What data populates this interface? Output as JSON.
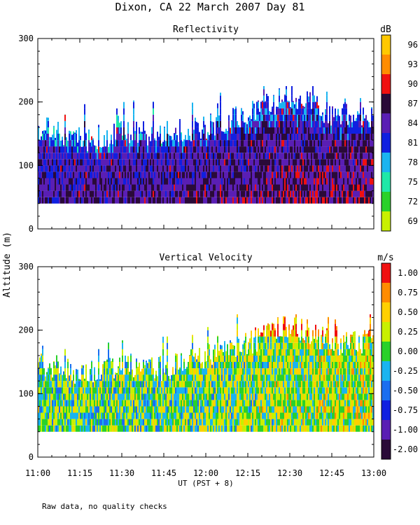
{
  "title": "Dixon, CA 22 March 2007  Day  81",
  "ylabel": "Altitude (m)",
  "xlabel": "UT  (PST + 8)",
  "footnote": "Raw data, no quality checks",
  "x_ticks": [
    "11:00",
    "11:15",
    "11:30",
    "11:45",
    "12:00",
    "12:15",
    "12:30",
    "12:45",
    "13:00"
  ],
  "colors": {
    "reflectivity": [
      "#c8f000",
      "#2ad12a",
      "#1fe8a8",
      "#1ab4f0",
      "#1020e0",
      "#5a1eb4",
      "#2a0a38",
      "#f01010",
      "#ff8c00",
      "#ffc800"
    ],
    "velocity": [
      "#2a0a38",
      "#5a1eb4",
      "#1020e0",
      "#1a6ef0",
      "#1ab4f0",
      "#2ad12a",
      "#c8f000",
      "#ffd000",
      "#ff8c00",
      "#f01010"
    ]
  },
  "chart_data": [
    {
      "type": "heatmap",
      "title": "Reflectivity",
      "units": "dB",
      "xlabel": "UT  (PST + 8)",
      "ylabel": "Altitude (m)",
      "x_range": [
        "11:00",
        "13:00"
      ],
      "ylim": [
        0,
        300
      ],
      "y_ticks": [
        "0",
        "100",
        "200",
        "300"
      ],
      "colorbar_labels": [
        "69",
        "72",
        "75",
        "78",
        "81",
        "84",
        "87",
        "90",
        "93",
        "96"
      ],
      "data_region": {
        "altitude_min": 40,
        "cloud_top_profile": [
          {
            "time": "11:00",
            "top": 160
          },
          {
            "time": "11:15",
            "top": 140
          },
          {
            "time": "11:30",
            "top": 150
          },
          {
            "time": "11:45",
            "top": 150
          },
          {
            "time": "12:00",
            "top": 160
          },
          {
            "time": "12:15",
            "top": 180
          },
          {
            "time": "12:30",
            "top": 210
          },
          {
            "time": "12:45",
            "top": 180
          },
          {
            "time": "13:00",
            "top": 180
          }
        ]
      }
    },
    {
      "type": "heatmap",
      "title": "Vertical Velocity",
      "units": "m/s",
      "xlabel": "UT  (PST + 8)",
      "ylabel": "Altitude (m)",
      "x_range": [
        "11:00",
        "13:00"
      ],
      "ylim": [
        0,
        300
      ],
      "y_ticks": [
        "0",
        "100",
        "200",
        "300"
      ],
      "colorbar_labels": [
        "-2.00",
        "-1.00",
        "-0.75",
        "-0.50",
        "-0.25",
        "0.00",
        "0.25",
        "0.50",
        "0.75",
        "1.00"
      ],
      "data_region": {
        "altitude_min": 40,
        "cloud_top_profile": [
          {
            "time": "11:00",
            "top": 150
          },
          {
            "time": "11:15",
            "top": 130
          },
          {
            "time": "11:30",
            "top": 140
          },
          {
            "time": "11:45",
            "top": 140
          },
          {
            "time": "12:00",
            "top": 160
          },
          {
            "time": "12:15",
            "top": 180
          },
          {
            "time": "12:30",
            "top": 210
          },
          {
            "time": "12:45",
            "top": 180
          },
          {
            "time": "13:00",
            "top": 180
          }
        ]
      }
    }
  ]
}
